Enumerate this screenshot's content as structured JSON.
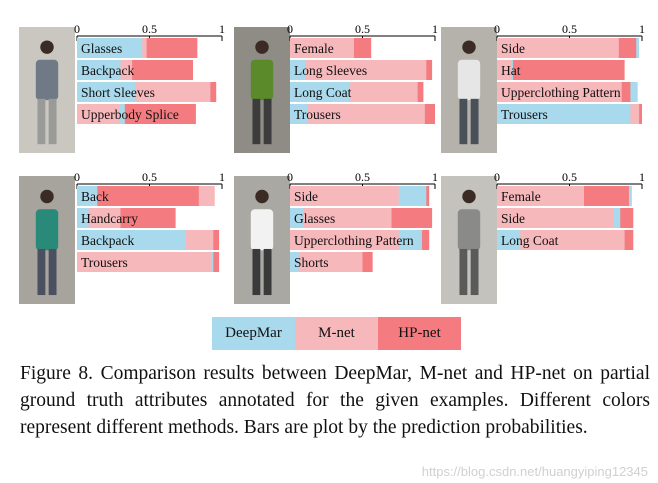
{
  "colors": {
    "DeepMar": "#a9d9ec",
    "M-net": "#f7b8bb",
    "HP-net": "#f47c80",
    "photo_bg_street": "#b5b2a8",
    "photo_bg_dark": "#6d6a62"
  },
  "axis_ticks": [
    "0",
    "0.5",
    "1"
  ],
  "panels_photos": [
    {
      "icon": "pedestrian-photo-1",
      "shirt": "#6f7a86",
      "legs": "#9a9a98",
      "bg": "#c9c7c0"
    },
    {
      "icon": "pedestrian-photo-2",
      "shirt": "#5a8a2a",
      "legs": "#3c3c3c",
      "bg": "#8e8c84"
    },
    {
      "icon": "pedestrian-photo-3",
      "shirt": "#e6e6e6",
      "legs": "#4a5058",
      "bg": "#b4b2aa"
    },
    {
      "icon": "pedestrian-photo-4",
      "shirt": "#2a8a7a",
      "legs": "#4a5060",
      "bg": "#a6a49c"
    },
    {
      "icon": "pedestrian-photo-5",
      "shirt": "#f2f2f2",
      "legs": "#3a3a3a",
      "bg": "#aaa8a2"
    },
    {
      "icon": "pedestrian-photo-6",
      "shirt": "#8a8a88",
      "legs": "#5a5a58",
      "bg": "#c4c2bc"
    }
  ],
  "chart_data": [
    {
      "type": "bar",
      "orientation": "horizontal",
      "xlim": [
        0,
        1
      ],
      "categories": [
        "Glasses",
        "Backpack",
        "Short Sleeves",
        "Upperbody Splice"
      ],
      "series": [
        {
          "name": "DeepMar",
          "values": [
            0.45,
            0.3,
            0.4,
            0.33
          ]
        },
        {
          "name": "M-net",
          "values": [
            0.48,
            0.38,
            0.92,
            0.29
          ]
        },
        {
          "name": "HP-net",
          "values": [
            0.83,
            0.8,
            0.96,
            0.82
          ]
        }
      ]
    },
    {
      "type": "bar",
      "orientation": "horizontal",
      "xlim": [
        0,
        1
      ],
      "categories": [
        "Female",
        "Long Sleeves",
        "Long Coat",
        "Trousers"
      ],
      "series": [
        {
          "name": "DeepMar",
          "values": [
            0.44,
            0.11,
            0.41,
            0.12
          ]
        },
        {
          "name": "M-net",
          "values": [
            0.44,
            0.94,
            0.88,
            0.93
          ]
        },
        {
          "name": "HP-net",
          "values": [
            0.56,
            0.98,
            0.92,
            1.0
          ]
        }
      ]
    },
    {
      "type": "bar",
      "orientation": "horizontal",
      "xlim": [
        0,
        1
      ],
      "categories": [
        "Side",
        "Hat",
        "Upperclothing Pattern",
        "Trousers"
      ],
      "series": [
        {
          "name": "DeepMar",
          "values": [
            0.98,
            0.11,
            0.97,
            0.92
          ]
        },
        {
          "name": "M-net",
          "values": [
            0.84,
            0.1,
            0.86,
            0.98
          ]
        },
        {
          "name": "HP-net",
          "values": [
            0.96,
            0.88,
            0.92,
            1.0
          ]
        }
      ]
    },
    {
      "type": "bar",
      "orientation": "horizontal",
      "xlim": [
        0,
        1
      ],
      "categories": [
        "Back",
        "Handcarry",
        "Backpack",
        "Trousers"
      ],
      "series": [
        {
          "name": "DeepMar",
          "values": [
            0.14,
            0.08,
            0.75,
            0.94
          ]
        },
        {
          "name": "M-net",
          "values": [
            0.95,
            0.3,
            0.94,
            0.93
          ]
        },
        {
          "name": "HP-net",
          "values": [
            0.84,
            0.68,
            0.98,
            0.98
          ]
        }
      ]
    },
    {
      "type": "bar",
      "orientation": "horizontal",
      "xlim": [
        0,
        1
      ],
      "categories": [
        "Side",
        "Glasses",
        "Upperclothing Pattern",
        "Shorts"
      ],
      "series": [
        {
          "name": "DeepMar",
          "values": [
            0.94,
            0.09,
            0.91,
            0.06
          ]
        },
        {
          "name": "M-net",
          "values": [
            0.75,
            0.7,
            0.75,
            0.5
          ]
        },
        {
          "name": "HP-net",
          "values": [
            0.96,
            0.98,
            0.96,
            0.57
          ]
        }
      ]
    },
    {
      "type": "bar",
      "orientation": "horizontal",
      "xlim": [
        0,
        1
      ],
      "categories": [
        "Female",
        "Side",
        "Long Coat"
      ],
      "series": [
        {
          "name": "DeepMar",
          "values": [
            0.93,
            0.85,
            0.16
          ]
        },
        {
          "name": "M-net",
          "values": [
            0.6,
            0.8,
            0.88
          ]
        },
        {
          "name": "HP-net",
          "values": [
            0.91,
            0.94,
            0.94
          ]
        }
      ]
    }
  ],
  "legend": {
    "items": [
      "DeepMar",
      "M-net",
      "HP-net"
    ]
  },
  "caption": {
    "text": "Figure 8.  Comparison results between DeepMar, M-net and HP-net on partial ground truth attributes annotated for the given examples. Different colors represent different methods. Bars are plot by the prediction probabilities."
  },
  "watermark": "https://blog.csdn.net/huangyiping12345"
}
